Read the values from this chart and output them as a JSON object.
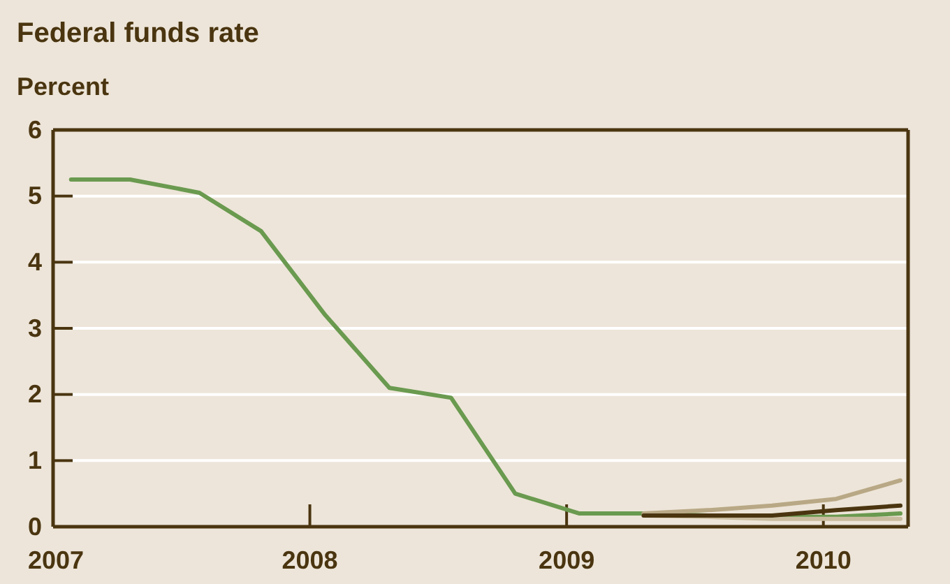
{
  "chart_data": {
    "type": "line",
    "title": "Federal funds rate",
    "ylabel": "Percent",
    "xlim": [
      2007,
      2010.33
    ],
    "xticks": [
      2007,
      2008,
      2009,
      2010
    ],
    "ylim": [
      0,
      6
    ],
    "yticks": [
      0,
      1,
      2,
      3,
      4,
      5,
      6
    ],
    "grid": "y",
    "series": [
      {
        "color": "#6a9a4f",
        "x": [
          2007.07,
          2007.3,
          2007.57,
          2007.81,
          2008.06,
          2008.31,
          2008.55,
          2008.8,
          2009.05,
          2009.3,
          2009.55,
          2009.8,
          2010.05,
          2010.3
        ],
        "values": [
          5.25,
          5.25,
          5.05,
          4.47,
          3.2,
          2.1,
          1.95,
          0.5,
          0.2,
          0.2,
          0.17,
          0.15,
          0.15,
          0.2
        ]
      },
      {
        "color": "#c9bc9f",
        "x": [
          2009.3,
          2009.55,
          2009.8,
          2010.05,
          2010.3
        ],
        "values": [
          0.17,
          0.15,
          0.12,
          0.12,
          0.12
        ]
      },
      {
        "color": "#b9a885",
        "x": [
          2009.3,
          2009.55,
          2009.8,
          2010.05,
          2010.3
        ],
        "values": [
          0.2,
          0.25,
          0.32,
          0.42,
          0.7
        ]
      },
      {
        "color": "#4a3510",
        "x": [
          2009.3,
          2009.55,
          2009.8,
          2010.05,
          2010.3
        ],
        "values": [
          0.17,
          0.17,
          0.17,
          0.25,
          0.32
        ]
      }
    ]
  }
}
